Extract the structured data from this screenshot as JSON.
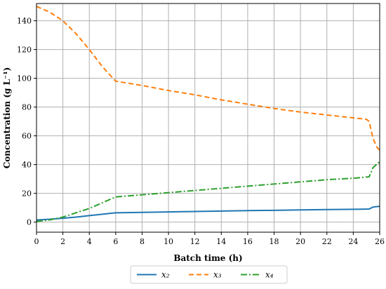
{
  "chart_data": {
    "type": "line",
    "xlabel": "Batch time (h)",
    "ylabel": "Concentration (g L⁻¹)",
    "xlim": [
      0,
      26
    ],
    "ylim": [
      -7,
      152
    ],
    "xticks": [
      0,
      2,
      4,
      6,
      8,
      10,
      12,
      14,
      16,
      18,
      20,
      22,
      24,
      26
    ],
    "yticks": [
      0,
      20,
      40,
      60,
      80,
      100,
      120,
      140
    ],
    "grid": true,
    "legend_position": "bottom-center, outside plot",
    "series": [
      {
        "name": "x₂",
        "color": "#1f77b4",
        "dash": "solid",
        "x": [
          0,
          1,
          2,
          3,
          4,
          5,
          6,
          8,
          10,
          12,
          14,
          16,
          18,
          20,
          22,
          24,
          25.2,
          25.5,
          26
        ],
        "y": [
          1.5,
          2.0,
          2.7,
          3.5,
          4.5,
          5.5,
          6.5,
          6.8,
          7.1,
          7.4,
          7.7,
          8.0,
          8.2,
          8.5,
          8.7,
          8.9,
          9.1,
          10.5,
          11.0
        ]
      },
      {
        "name": "x₃",
        "color": "#ff7f0e",
        "dash": "dashed",
        "x": [
          0,
          1,
          2,
          3,
          4,
          5,
          6,
          8,
          10,
          12,
          14,
          16,
          18,
          20,
          22,
          24,
          25,
          25.2,
          25.5,
          25.8,
          26
        ],
        "y": [
          150,
          146,
          140,
          131,
          120,
          108,
          98,
          95,
          91.5,
          88.5,
          85,
          82,
          79,
          76.5,
          74.5,
          72.5,
          71.5,
          70,
          58,
          52,
          50
        ]
      },
      {
        "name": "x₄",
        "color": "#2ca02c",
        "dash": "dashdot",
        "x": [
          0,
          1,
          2,
          3,
          4,
          5,
          6,
          8,
          10,
          12,
          14,
          16,
          18,
          20,
          22,
          24,
          25.2,
          25.5,
          26
        ],
        "y": [
          0.5,
          1.5,
          3.5,
          6.5,
          9.5,
          13.5,
          17.5,
          19,
          20.5,
          22,
          23.5,
          25,
          26.5,
          28,
          29.5,
          30.5,
          31.5,
          38,
          42
        ]
      }
    ]
  }
}
